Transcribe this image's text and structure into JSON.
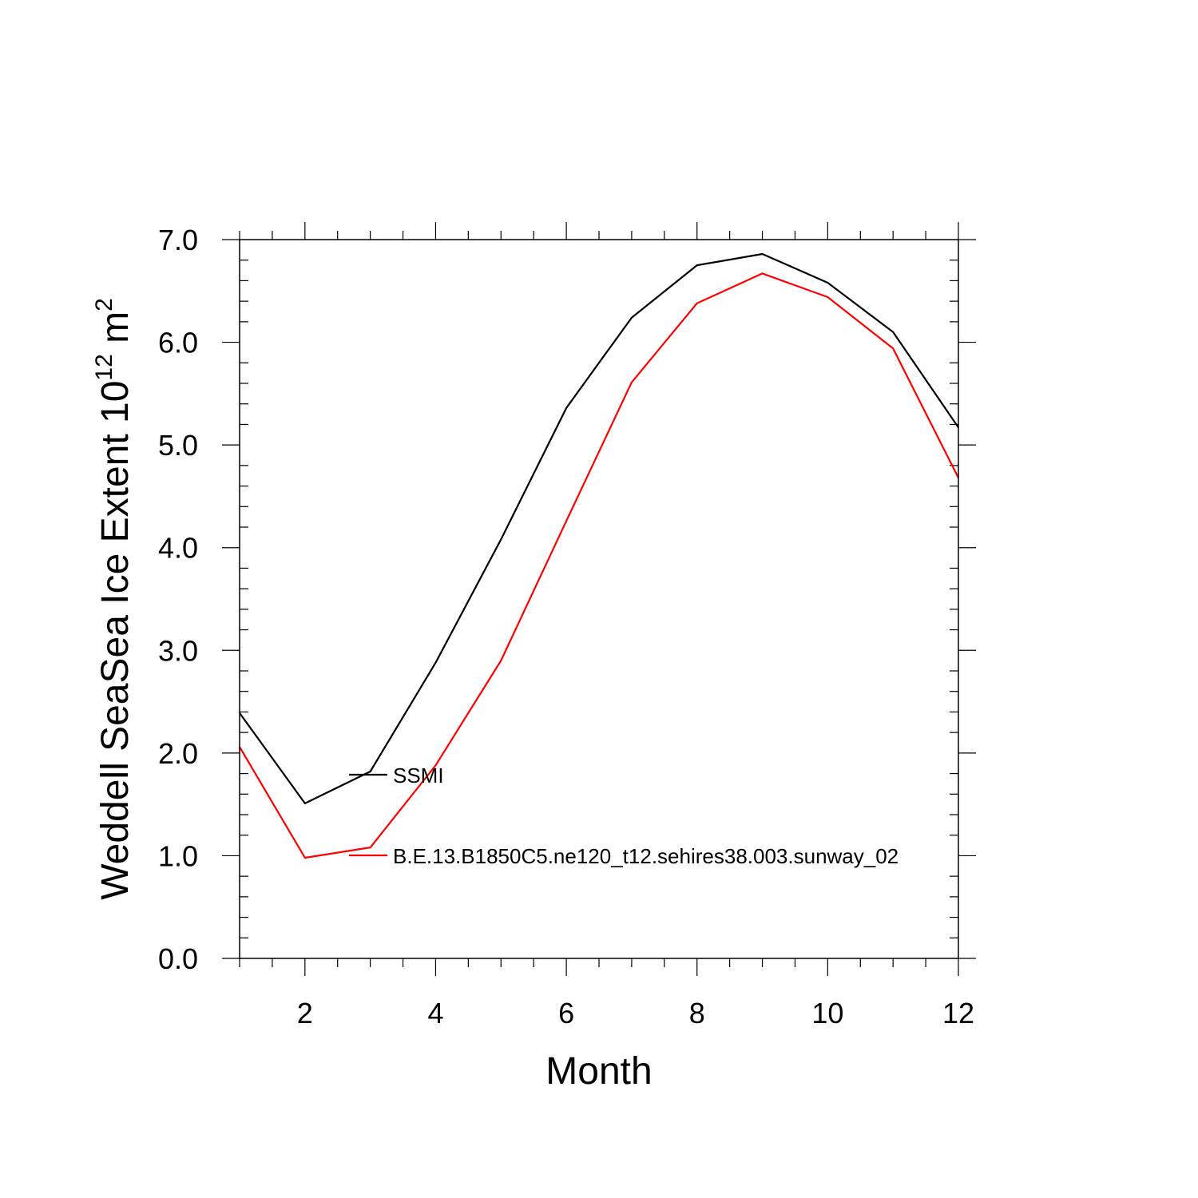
{
  "chart_data": {
    "type": "line",
    "xlabel": "Month",
    "ylabel": {
      "main": "Weddell SeaSea Ice Extent 10",
      "exponent": "12",
      "unit": " m",
      "unit_exponent": "2"
    },
    "xlim": [
      1,
      12
    ],
    "ylim": [
      0,
      7
    ],
    "x_ticks": [
      2,
      4,
      6,
      8,
      10,
      12
    ],
    "x_tick_labels": [
      "2",
      "4",
      "6",
      "8",
      "10",
      "12"
    ],
    "y_ticks": [
      0,
      1,
      2,
      3,
      4,
      5,
      6,
      7
    ],
    "y_tick_labels": [
      "0.0",
      "1.0",
      "2.0",
      "3.0",
      "4.0",
      "5.0",
      "6.0",
      "7.0"
    ],
    "x": [
      1,
      2,
      3,
      4,
      5,
      6,
      7,
      8,
      9,
      10,
      11,
      12
    ],
    "series": [
      {
        "name": "SSMI",
        "color": "#000000",
        "values": [
          2.39,
          1.51,
          1.82,
          2.88,
          4.08,
          5.36,
          6.24,
          6.75,
          6.86,
          6.58,
          6.1,
          5.17
        ]
      },
      {
        "name": "B.E.13.B1850C5.ne120_t12.sehires38.003.sunway_02",
        "color": "#ff0000",
        "values": [
          2.06,
          0.98,
          1.08,
          1.88,
          2.9,
          4.26,
          5.61,
          6.38,
          6.67,
          6.44,
          5.94,
          4.68
        ]
      }
    ],
    "legend_placement": "inside, lower-left",
    "grid": false
  }
}
